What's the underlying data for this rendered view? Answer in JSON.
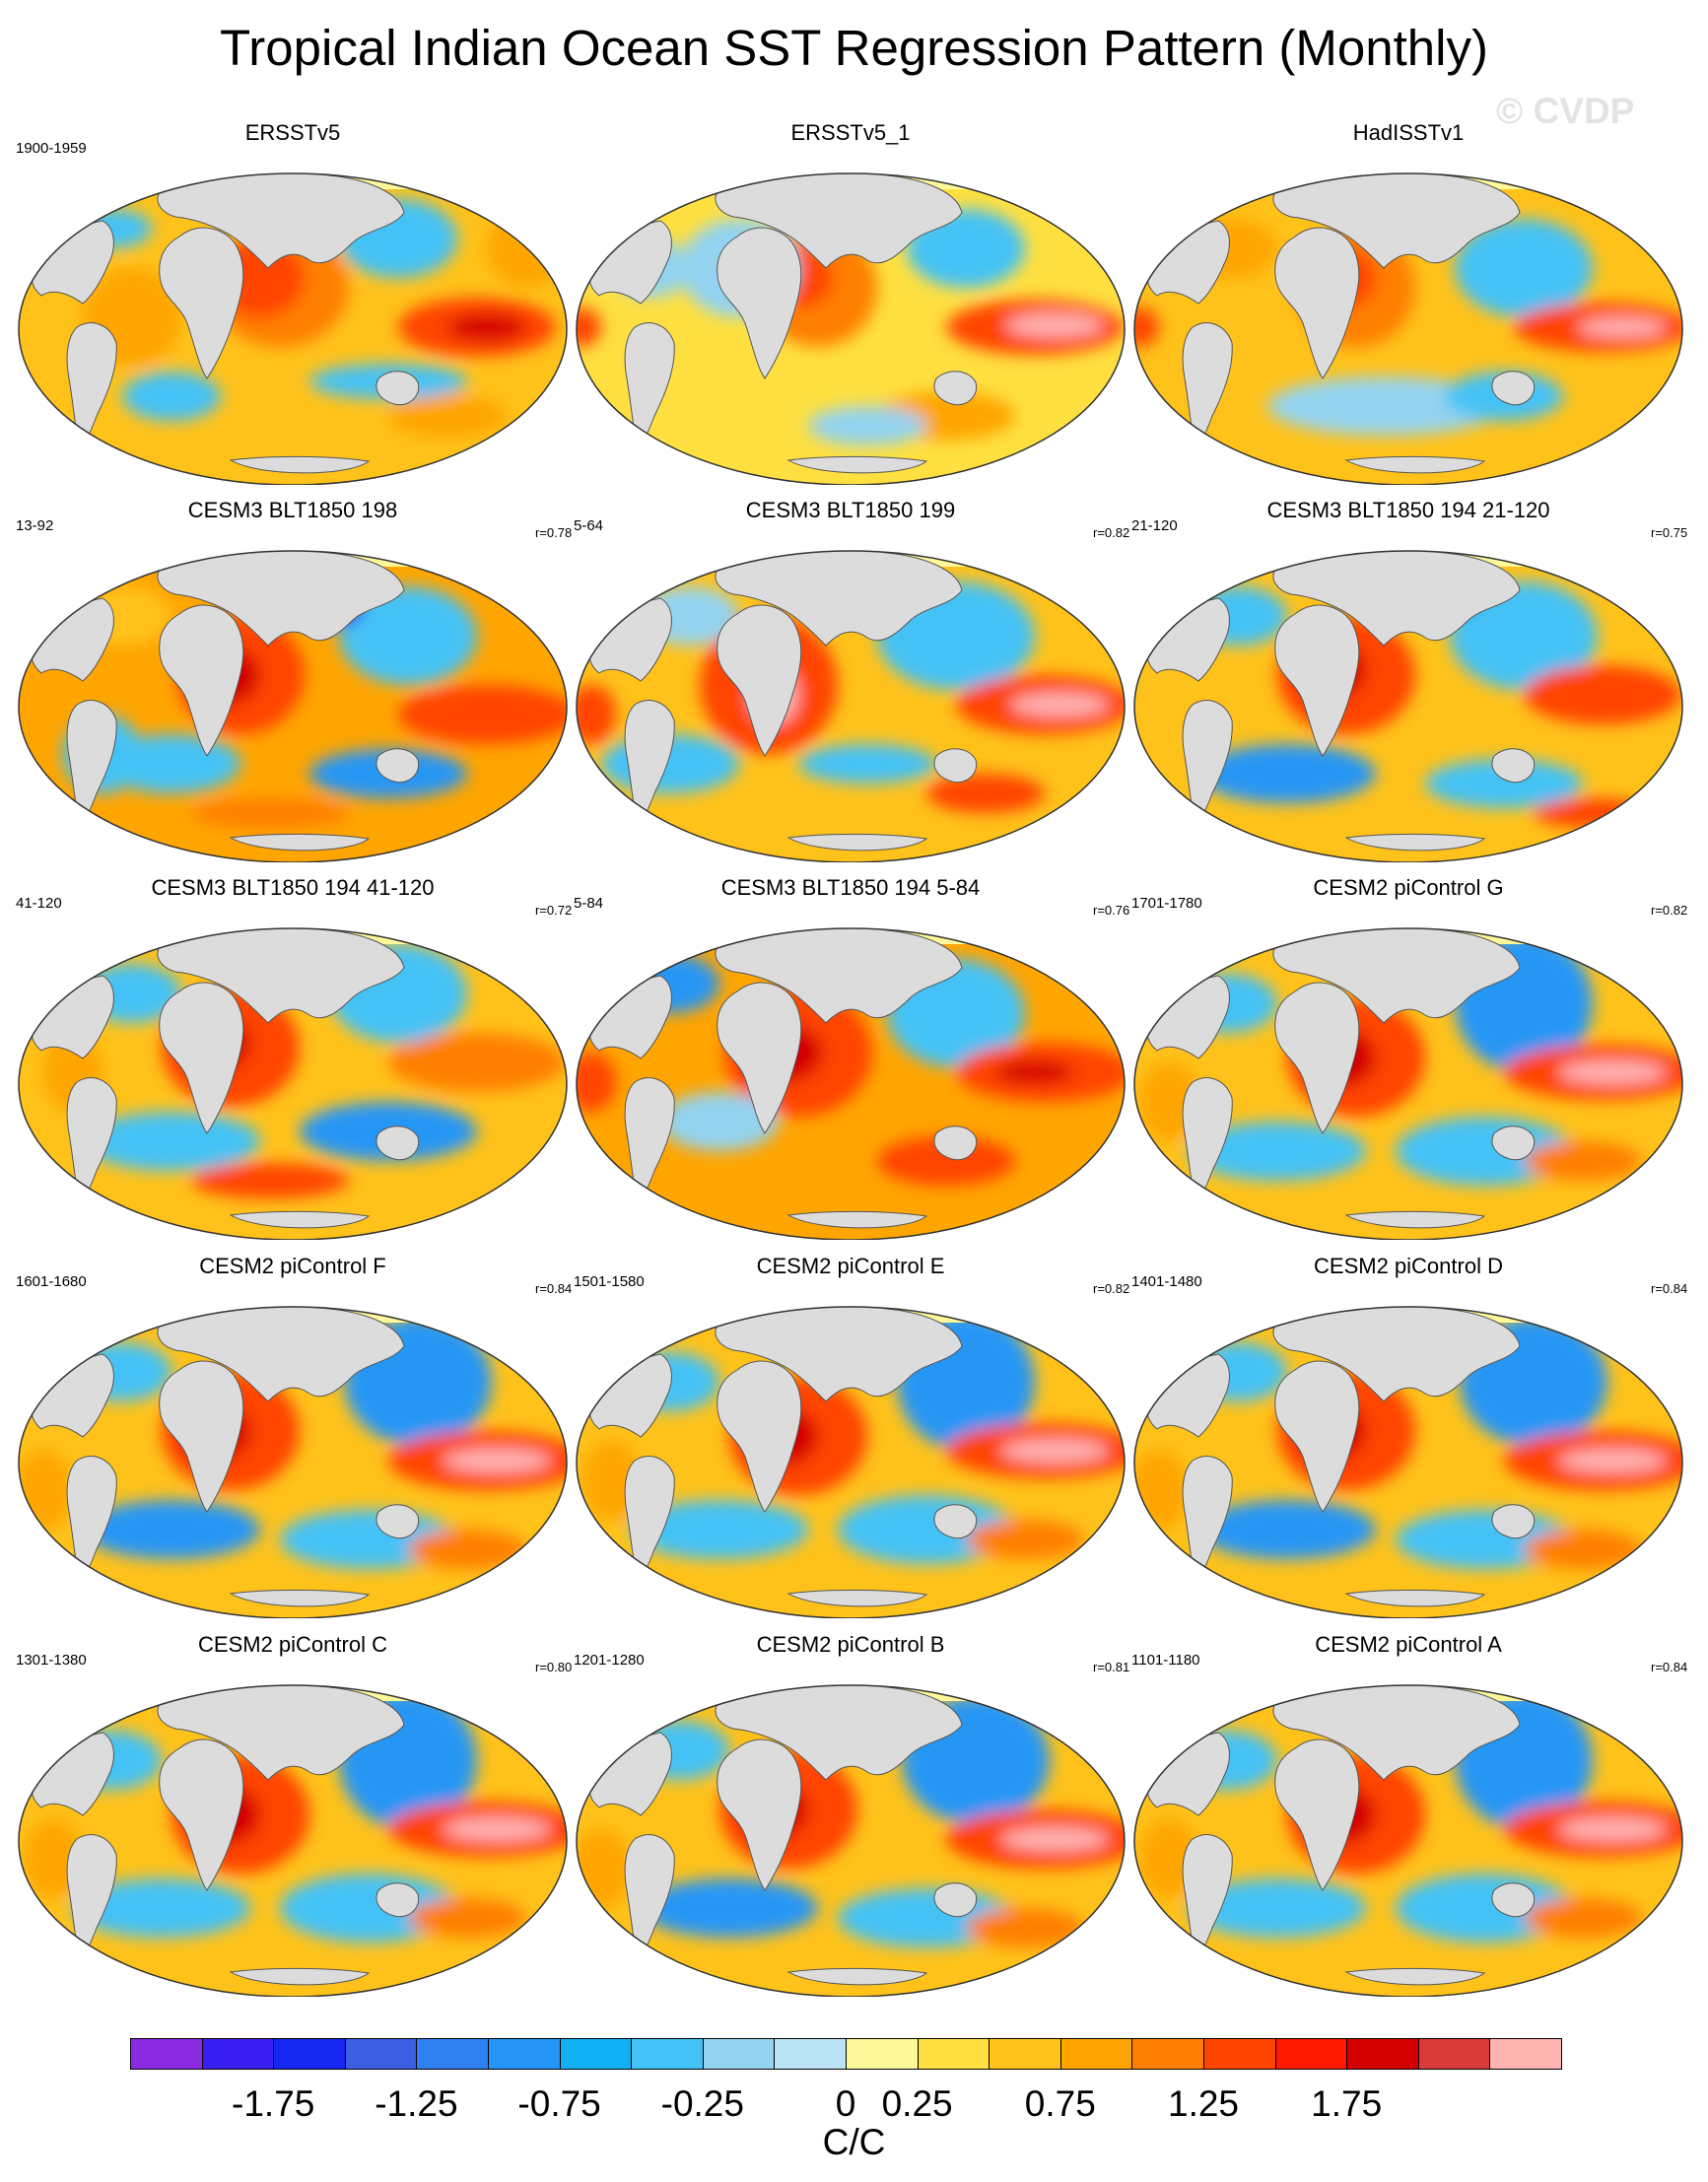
{
  "title": "Tropical Indian Ocean SST Regression Pattern (Monthly)",
  "watermark": "© CVDP",
  "panels": [
    {
      "title": "ERSSTv5",
      "years": "1900-1959",
      "corr": "",
      "pattern": "obs1"
    },
    {
      "title": "ERSSTv5_1",
      "years": "",
      "corr": "",
      "pattern": "obs2"
    },
    {
      "title": "HadISSTv1",
      "years": "",
      "corr": "",
      "pattern": "obs3"
    },
    {
      "title": "CESM3 BLT1850 198",
      "years": "13-92",
      "corr": "r=0.78",
      "pattern": "m1"
    },
    {
      "title": "CESM3 BLT1850 199",
      "years": "5-64",
      "corr": "r=0.82",
      "pattern": "m2"
    },
    {
      "title": "CESM3 BLT1850 194 21-120",
      "years": "21-120",
      "corr": "r=0.75",
      "pattern": "m3"
    },
    {
      "title": "CESM3 BLT1850 194 41-120",
      "years": "41-120",
      "corr": "r=0.72",
      "pattern": "m4"
    },
    {
      "title": "CESM3 BLT1850 194 5-84",
      "years": "5-84",
      "corr": "r=0.76",
      "pattern": "m5"
    },
    {
      "title": "CESM2 piControl G",
      "years": "1701-1780",
      "corr": "r=0.82",
      "pattern": "c1"
    },
    {
      "title": "CESM2 piControl F",
      "years": "1601-1680",
      "corr": "r=0.84",
      "pattern": "c2"
    },
    {
      "title": "CESM2 piControl E",
      "years": "1501-1580",
      "corr": "r=0.82",
      "pattern": "c1"
    },
    {
      "title": "CESM2 piControl D",
      "years": "1401-1480",
      "corr": "r=0.84",
      "pattern": "c2"
    },
    {
      "title": "CESM2 piControl C",
      "years": "1301-1380",
      "corr": "r=0.80",
      "pattern": "c1"
    },
    {
      "title": "CESM2 piControl B",
      "years": "1201-1280",
      "corr": "r=0.81",
      "pattern": "c2"
    },
    {
      "title": "CESM2 piControl A",
      "years": "1101-1180",
      "corr": "r=0.84",
      "pattern": "c1"
    }
  ],
  "colorbar": {
    "colors": [
      "#8a2be2",
      "#3a1df0",
      "#1426f0",
      "#3b5fe0",
      "#2f7ff0",
      "#2596f5",
      "#12b0f5",
      "#45c2f5",
      "#93d3f0",
      "#bce3f5",
      "#fff89a",
      "#ffe040",
      "#ffc21a",
      "#ffa500",
      "#ff7f00",
      "#ff4500",
      "#ff1a00",
      "#d40000",
      "#d93a3a",
      "#ffb3b3"
    ],
    "labels": [
      "-1.75",
      "-1.25",
      "-0.75",
      "-0.25",
      "0",
      "0.25",
      "0.75",
      "1.25",
      "1.75"
    ],
    "label_boundaries": [
      2,
      4,
      6,
      8,
      10,
      11,
      13,
      15,
      17
    ],
    "units": "C/C"
  }
}
